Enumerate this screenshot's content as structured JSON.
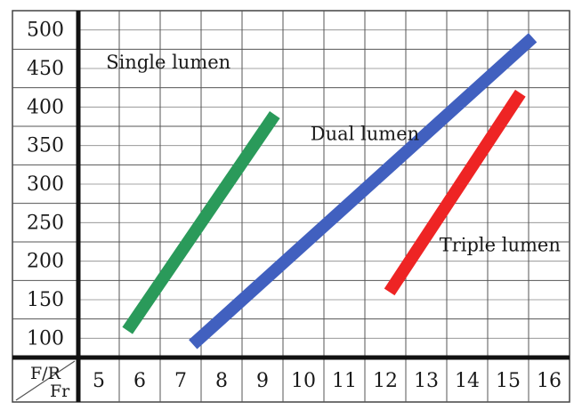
{
  "chart_data": {
    "type": "line",
    "title": "",
    "corner_label_top": "F/R",
    "corner_label_bottom": "Fr",
    "x_ticks": [
      "5",
      "6",
      "7",
      "8",
      "9",
      "10",
      "11",
      "12",
      "13",
      "14",
      "15",
      "16"
    ],
    "y_ticks": [
      "100",
      "150",
      "200",
      "250",
      "300",
      "350",
      "400",
      "450",
      "500"
    ],
    "xlim": [
      4.5,
      16.5
    ],
    "ylim": [
      75,
      525
    ],
    "grid": true,
    "series": [
      {
        "name": "Single lumen",
        "color": "#2a9a5a",
        "points": [
          [
            5.7,
            110
          ],
          [
            9.3,
            390
          ]
        ],
        "label_at": [
          6.7,
          450
        ]
      },
      {
        "name": "Dual lumen",
        "color": "#4160bf",
        "points": [
          [
            7.3,
            92
          ],
          [
            15.6,
            490
          ]
        ],
        "label_at": [
          11.5,
          357
        ]
      },
      {
        "name": "Triple lumen",
        "color": "#ee2424",
        "points": [
          [
            12.1,
            160
          ],
          [
            15.3,
            418
          ]
        ],
        "label_at": [
          14.8,
          213
        ]
      }
    ]
  }
}
